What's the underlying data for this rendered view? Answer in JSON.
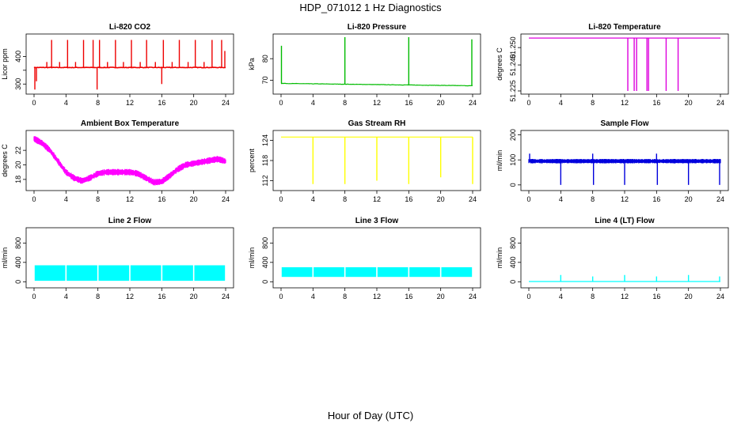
{
  "title": "HDP_071012  1 Hz Diagnostics",
  "x_caption": "Hour of Day (UTC)",
  "chart_data": [
    {
      "type": "line",
      "title": "Li-820 CO2",
      "ylabel": "Licor ppm",
      "color": "#ee0000",
      "xlim": [
        0,
        24
      ],
      "ylim": [
        275,
        470
      ],
      "xticks": [
        0,
        4,
        8,
        12,
        16,
        20,
        24
      ],
      "yticks": [
        300,
        350,
        400
      ],
      "ytick_labels": [
        "300",
        "",
        "400"
      ],
      "signal": {
        "kind": "spikes",
        "base": 360,
        "noise": 2,
        "spikes": [
          {
            "x": 0.1,
            "y": 280
          },
          {
            "x": 0.3,
            "y": 310
          },
          {
            "x": 1.6,
            "y": 380
          },
          {
            "x": 2.2,
            "y": 460
          },
          {
            "x": 3.2,
            "y": 380
          },
          {
            "x": 4.2,
            "y": 460
          },
          {
            "x": 5.2,
            "y": 380
          },
          {
            "x": 6.2,
            "y": 460
          },
          {
            "x": 7.4,
            "y": 460
          },
          {
            "x": 7.9,
            "y": 280
          },
          {
            "x": 8.2,
            "y": 460
          },
          {
            "x": 9.2,
            "y": 380
          },
          {
            "x": 10.2,
            "y": 460
          },
          {
            "x": 11.2,
            "y": 380
          },
          {
            "x": 12.2,
            "y": 460
          },
          {
            "x": 13.3,
            "y": 380
          },
          {
            "x": 14.1,
            "y": 460
          },
          {
            "x": 15.2,
            "y": 380
          },
          {
            "x": 16.0,
            "y": 300
          },
          {
            "x": 16.2,
            "y": 460
          },
          {
            "x": 17.3,
            "y": 380
          },
          {
            "x": 18.2,
            "y": 460
          },
          {
            "x": 19.3,
            "y": 380
          },
          {
            "x": 20.2,
            "y": 460
          },
          {
            "x": 21.3,
            "y": 380
          },
          {
            "x": 22.3,
            "y": 460
          },
          {
            "x": 23.5,
            "y": 460
          },
          {
            "x": 23.9,
            "y": 420
          }
        ]
      }
    },
    {
      "type": "line",
      "title": "Li-820 Pressure",
      "ylabel": "kPa",
      "color": "#00bb00",
      "xlim": [
        0,
        24
      ],
      "ylim": [
        65,
        90
      ],
      "xticks": [
        0,
        4,
        8,
        12,
        16,
        20,
        24
      ],
      "yticks": [
        70,
        80
      ],
      "ytick_labels": [
        "70",
        "80"
      ],
      "signal": {
        "kind": "drift",
        "start": 68.5,
        "end": 67.4,
        "noise": 0.15,
        "spikes": [
          {
            "x": 0.05,
            "y": 86
          },
          {
            "x": 8.0,
            "y": 90
          },
          {
            "x": 16.0,
            "y": 90
          },
          {
            "x": 23.9,
            "y": 89
          }
        ]
      }
    },
    {
      "type": "line",
      "title": "Li-820 Temperature",
      "ylabel": "degrees C",
      "color": "#dd00dd",
      "xlim": [
        0,
        24
      ],
      "ylim": [
        51.225,
        51.256
      ],
      "xticks": [
        0,
        4,
        8,
        12,
        16,
        20,
        24
      ],
      "yticks": [
        51.225,
        51.24,
        51.25
      ],
      "ytick_labels": [
        "51.225",
        "51.240",
        "51.250"
      ],
      "signal": {
        "kind": "flat",
        "base": 51.2555,
        "spikes": [
          {
            "x": 12.4,
            "y": 51.225
          },
          {
            "x": 13.2,
            "y": 51.225
          },
          {
            "x": 13.5,
            "y": 51.225
          },
          {
            "x": 14.8,
            "y": 51.225
          },
          {
            "x": 15.0,
            "y": 51.225
          },
          {
            "x": 17.2,
            "y": 51.225
          },
          {
            "x": 18.7,
            "y": 51.225
          }
        ]
      }
    },
    {
      "type": "line",
      "title": "Ambient Box Temperature",
      "ylabel": "degrees C",
      "color": "#ff00ff",
      "xlim": [
        0,
        24
      ],
      "ylim": [
        16.9,
        24.3
      ],
      "xticks": [
        0,
        4,
        8,
        12,
        16,
        20,
        24
      ],
      "yticks": [
        18,
        20,
        22
      ],
      "ytick_labels": [
        "18",
        "20",
        "22"
      ],
      "signal": {
        "kind": "band",
        "width": 0.9,
        "points": [
          [
            0,
            23.6
          ],
          [
            1,
            23
          ],
          [
            2,
            22
          ],
          [
            3,
            20.5
          ],
          [
            4,
            19
          ],
          [
            5,
            18.2
          ],
          [
            6,
            17.8
          ],
          [
            7,
            18.2
          ],
          [
            8,
            18.8
          ],
          [
            9,
            19
          ],
          [
            10,
            19
          ],
          [
            11,
            19
          ],
          [
            12,
            19
          ],
          [
            13,
            18.8
          ],
          [
            14,
            18.2
          ],
          [
            15,
            17.6
          ],
          [
            16,
            17.7
          ],
          [
            17,
            18.5
          ],
          [
            18,
            19.4
          ],
          [
            19,
            20
          ],
          [
            20,
            20.2
          ],
          [
            21,
            20.4
          ],
          [
            22,
            20.6
          ],
          [
            23,
            20.8
          ],
          [
            24,
            20.5
          ]
        ]
      }
    },
    {
      "type": "line",
      "title": "Gas Stream RH",
      "ylabel": "percent",
      "color": "#ffff00",
      "xlim": [
        0,
        24
      ],
      "ylim": [
        110,
        126
      ],
      "xticks": [
        0,
        4,
        8,
        12,
        16,
        20,
        24
      ],
      "yticks": [
        112,
        118,
        124
      ],
      "ytick_labels": [
        "112",
        "118",
        "124"
      ],
      "signal": {
        "kind": "flat",
        "base": 125,
        "dips": [
          {
            "x": 4.0,
            "y": 111
          },
          {
            "x": 8.0,
            "y": 111
          },
          {
            "x": 12.0,
            "y": 112
          },
          {
            "x": 16.0,
            "y": 111
          },
          {
            "x": 20.0,
            "y": 113
          },
          {
            "x": 24.0,
            "y": 111
          }
        ]
      }
    },
    {
      "type": "line",
      "title": "Sample Flow",
      "ylabel": "ml/min",
      "color": "#0000dd",
      "xlim": [
        0,
        24
      ],
      "ylim": [
        -10,
        205
      ],
      "xticks": [
        0,
        4,
        8,
        12,
        16,
        20,
        24
      ],
      "yticks": [
        0,
        100,
        200
      ],
      "ytick_labels": [
        "0",
        "100",
        "200"
      ],
      "signal": {
        "kind": "band",
        "width": 18,
        "points": [
          [
            0,
            95
          ],
          [
            24,
            95
          ]
        ],
        "spikes": [
          {
            "x": 0.1,
            "y": 125
          },
          {
            "x": 4.0,
            "y": 0
          },
          {
            "x": 8.0,
            "y": 125
          },
          {
            "x": 8.1,
            "y": 0
          },
          {
            "x": 12.0,
            "y": 0
          },
          {
            "x": 16.0,
            "y": 125
          },
          {
            "x": 16.1,
            "y": 0
          },
          {
            "x": 20.0,
            "y": 0
          },
          {
            "x": 23.9,
            "y": 0
          }
        ]
      }
    },
    {
      "type": "line",
      "title": "Line 2 Flow",
      "ylabel": "ml/min",
      "color": "#00ffff",
      "xlim": [
        0,
        24
      ],
      "ylim": [
        -60,
        1050
      ],
      "xticks": [
        0,
        4,
        8,
        12,
        16,
        20,
        24
      ],
      "yticks": [
        0,
        400,
        800
      ],
      "ytick_labels": [
        "0",
        "400",
        "800"
      ],
      "signal": {
        "kind": "segments",
        "low": 20,
        "high": 340,
        "gaps": [
          0,
          4,
          8,
          12,
          16,
          20,
          24
        ]
      }
    },
    {
      "type": "line",
      "title": "Line 3 Flow",
      "ylabel": "ml/min",
      "color": "#00ffff",
      "xlim": [
        0,
        24
      ],
      "ylim": [
        -60,
        1050
      ],
      "xticks": [
        0,
        4,
        8,
        12,
        16,
        20,
        24
      ],
      "yticks": [
        0,
        400,
        800
      ],
      "ytick_labels": [
        "0",
        "400",
        "800"
      ],
      "signal": {
        "kind": "segments",
        "low": 100,
        "high": 300,
        "gaps": [
          0,
          4,
          8,
          12,
          16,
          20,
          24
        ]
      }
    },
    {
      "type": "line",
      "title": "Line 4 (LT) Flow",
      "ylabel": "ml/min",
      "color": "#00ffff",
      "xlim": [
        0,
        24
      ],
      "ylim": [
        -60,
        1050
      ],
      "xticks": [
        0,
        4,
        8,
        12,
        16,
        20,
        24
      ],
      "yticks": [
        0,
        400,
        800
      ],
      "ytick_labels": [
        "0",
        "400",
        "800"
      ],
      "signal": {
        "kind": "flat",
        "base": 5,
        "spikes": [
          {
            "x": 4.0,
            "y": 140
          },
          {
            "x": 8.0,
            "y": 110
          },
          {
            "x": 12.0,
            "y": 140
          },
          {
            "x": 16.0,
            "y": 110
          },
          {
            "x": 20.0,
            "y": 140
          },
          {
            "x": 23.9,
            "y": 110
          }
        ]
      }
    }
  ]
}
